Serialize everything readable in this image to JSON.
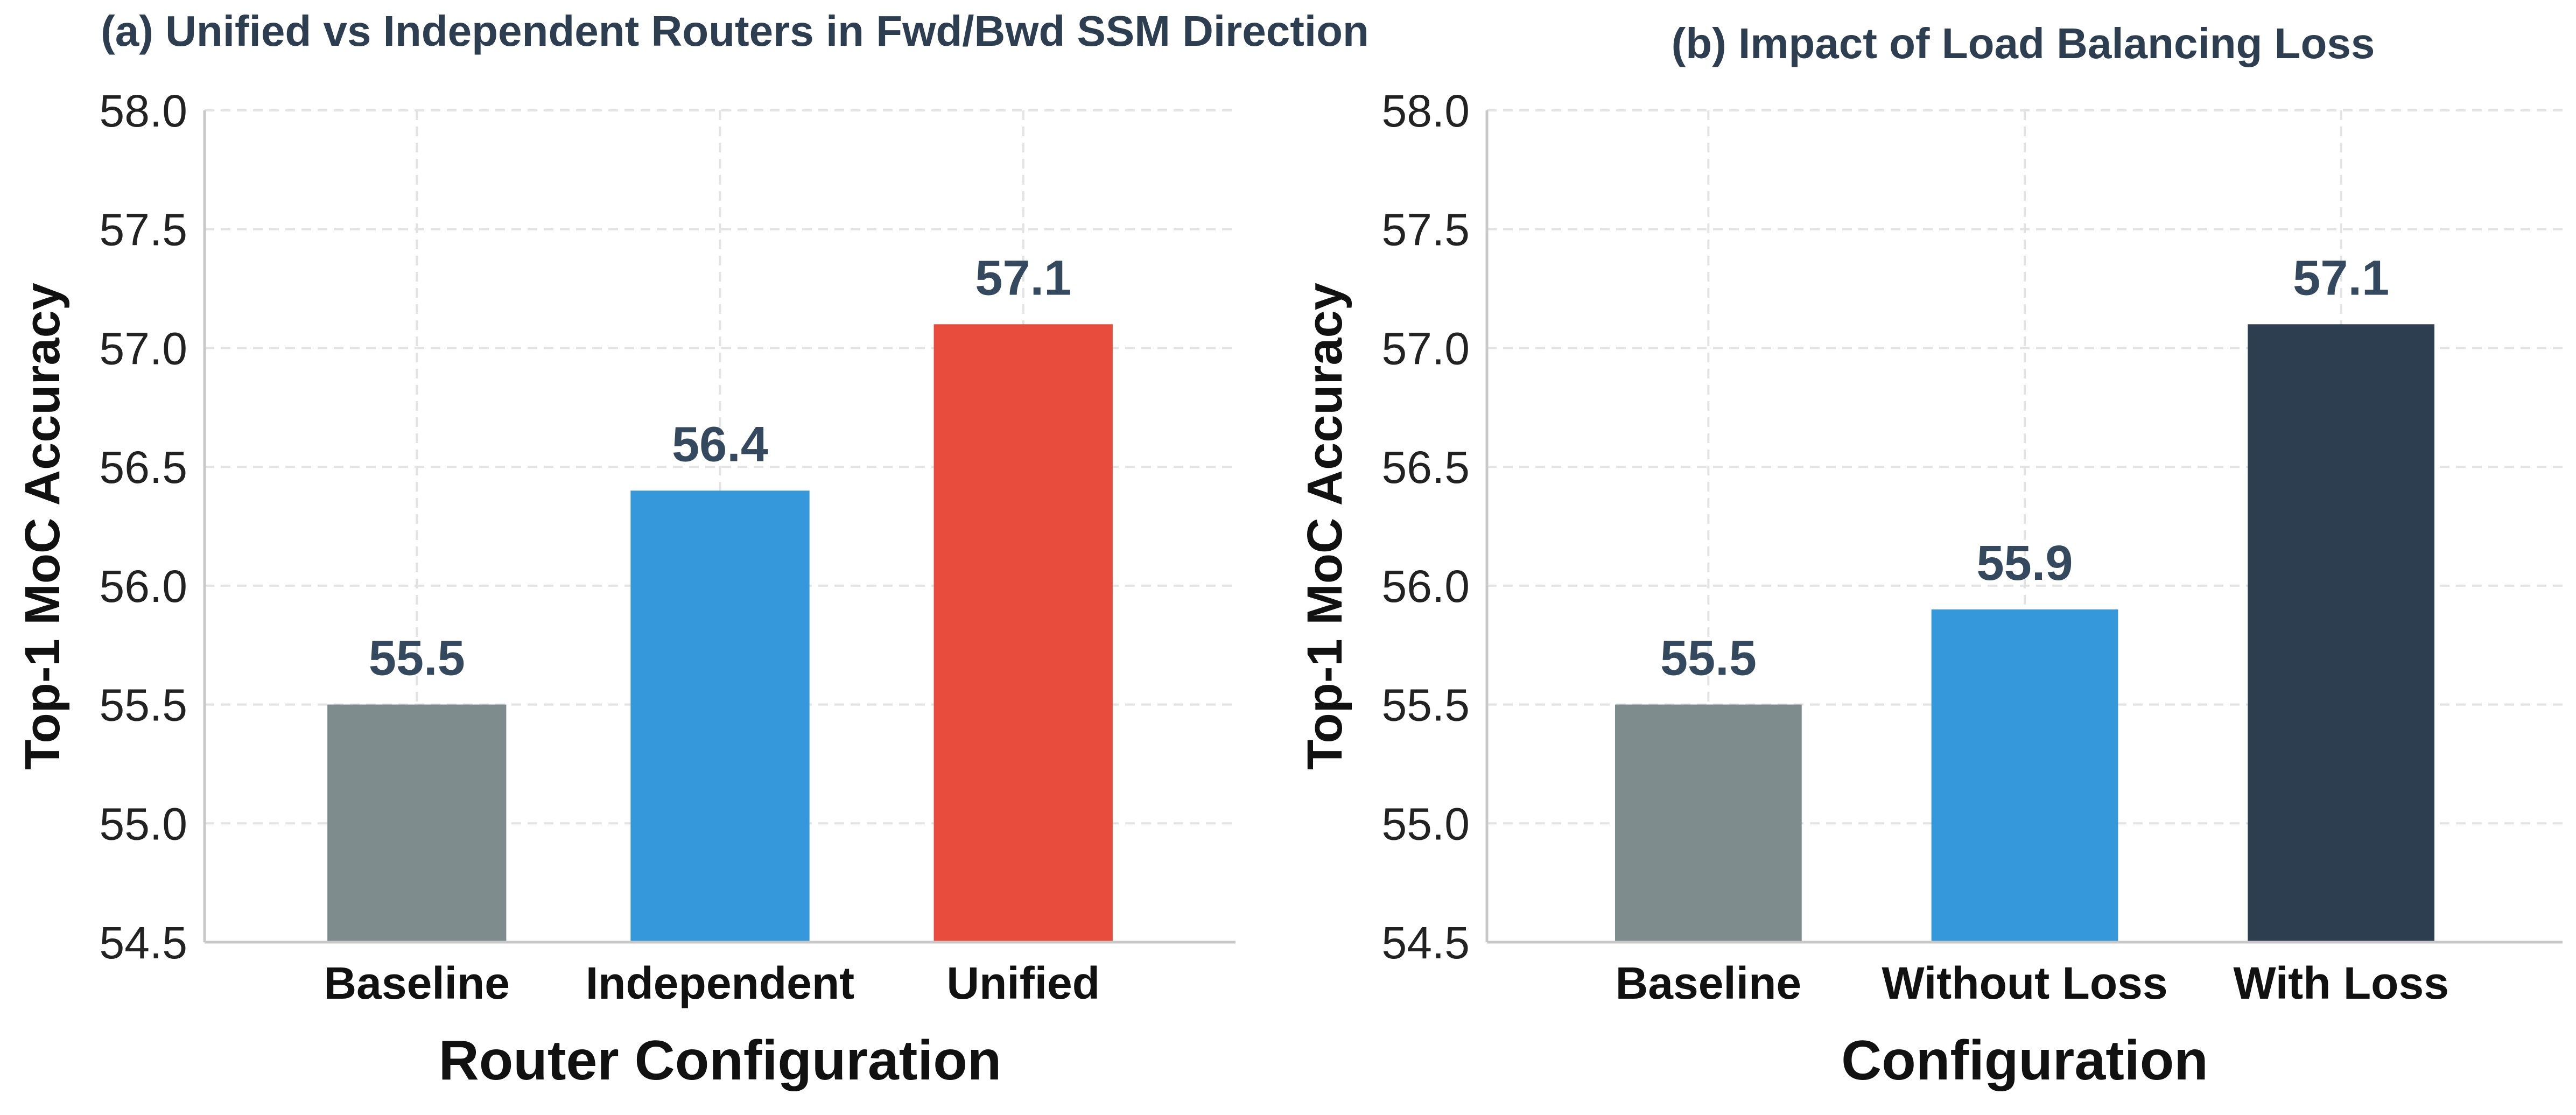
{
  "figure": {
    "panels": [
      {
        "title": "(a) Unified vs Independent Routers in Fwd/Bwd SSM Direction"
      },
      {
        "title": "(b) Impact of Load Balancing Loss"
      }
    ]
  },
  "chart_data": [
    {
      "type": "bar",
      "title": "(a) Unified vs Independent Routers in Fwd/Bwd SSM Direction",
      "xlabel": "Router Configuration",
      "ylabel": "Top-1 MoC Accuracy",
      "categories": [
        "Baseline",
        "Independent",
        "Unified"
      ],
      "values": [
        55.5,
        56.4,
        57.1
      ],
      "value_labels": [
        "55.5",
        "56.4",
        "57.1"
      ],
      "colors": [
        "#7f8c8d",
        "#3498db",
        "#e74c3c"
      ],
      "ylim": [
        54.5,
        58.0
      ],
      "yticks": [
        54.5,
        55.0,
        55.5,
        56.0,
        56.5,
        57.0,
        57.5,
        58.0
      ],
      "ytick_labels": [
        "54.5",
        "55.0",
        "55.5",
        "56.0",
        "56.5",
        "57.0",
        "57.5",
        "58.0"
      ],
      "grid": true
    },
    {
      "type": "bar",
      "title": "(b) Impact of Load Balancing Loss",
      "xlabel": "Configuration",
      "ylabel": "Top-1 MoC Accuracy",
      "categories": [
        "Baseline",
        "Without Loss",
        "With Loss"
      ],
      "values": [
        55.5,
        55.9,
        57.1
      ],
      "value_labels": [
        "55.5",
        "55.9",
        "57.1"
      ],
      "colors": [
        "#7f8c8d",
        "#3498db",
        "#2c3e50"
      ],
      "ylim": [
        54.5,
        58.0
      ],
      "yticks": [
        54.5,
        55.0,
        55.5,
        56.0,
        56.5,
        57.0,
        57.5,
        58.0
      ],
      "ytick_labels": [
        "54.5",
        "55.0",
        "55.5",
        "56.0",
        "56.5",
        "57.0",
        "57.5",
        "58.0"
      ],
      "grid": true
    }
  ]
}
